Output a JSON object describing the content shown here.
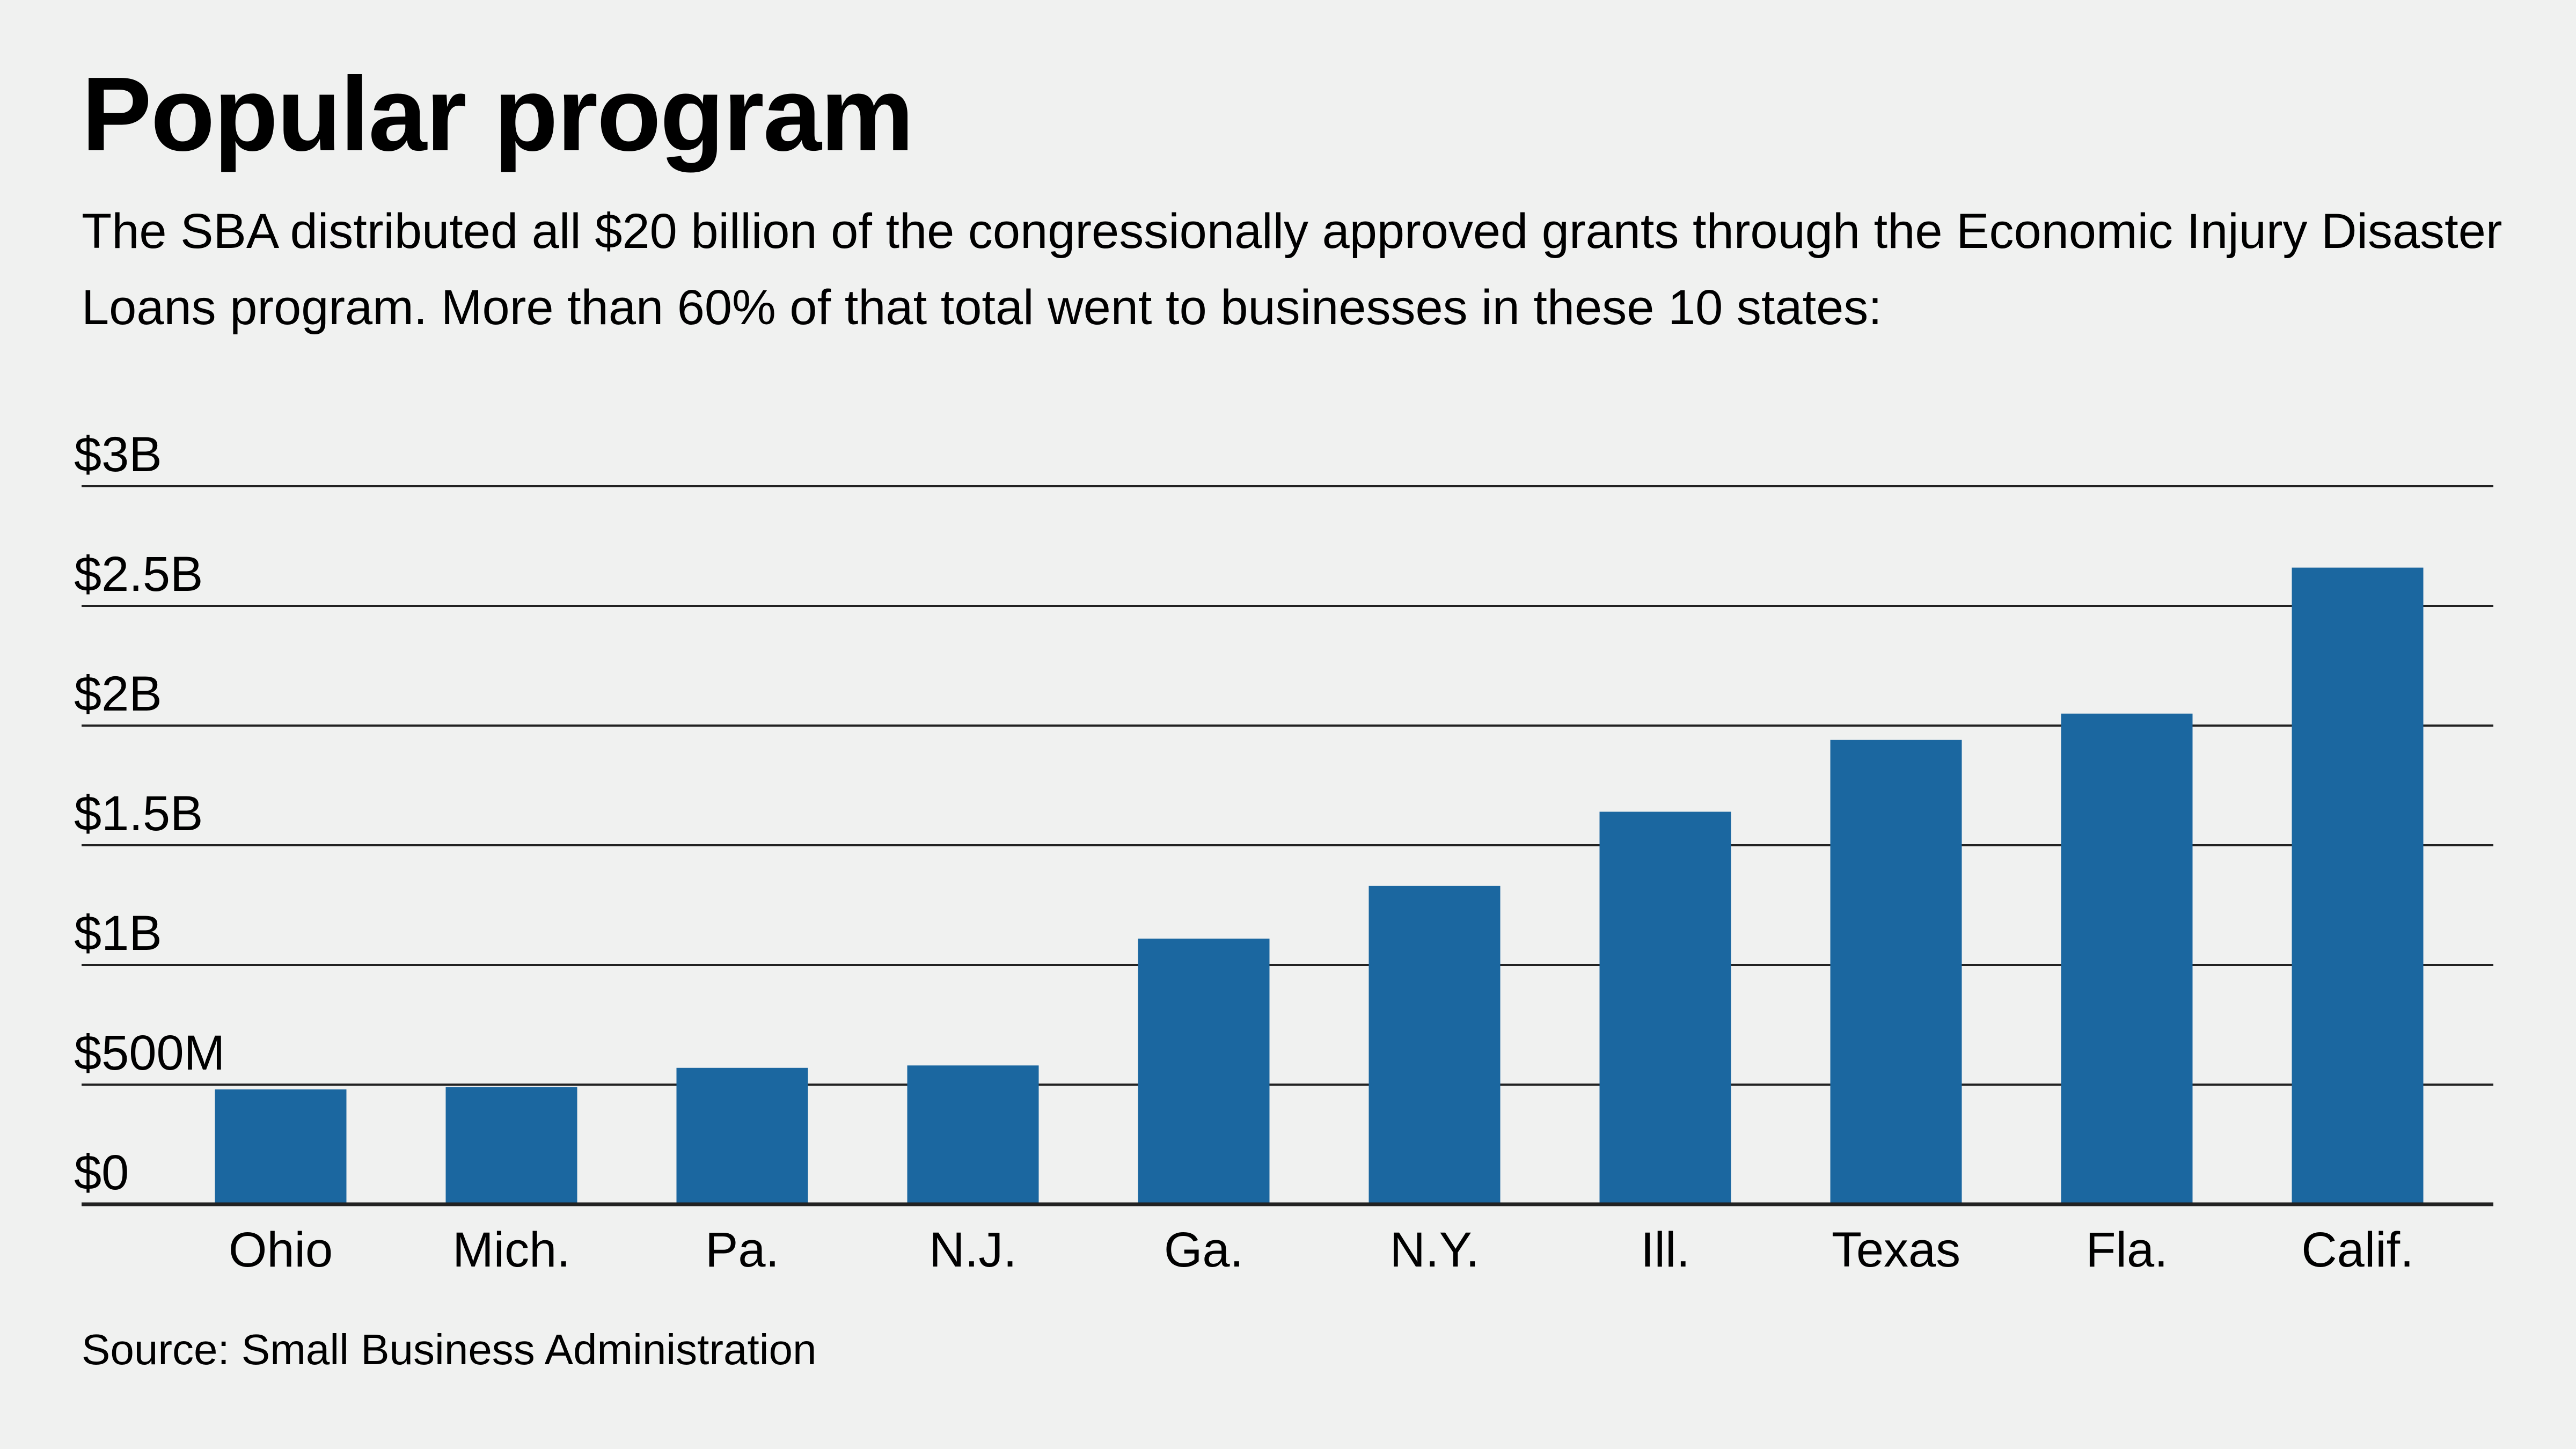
{
  "title": "Popular program",
  "subtitle": "The SBA distributed all $20 billion of the congressionally approved grants through the Economic Injury Disaster Loans program. More than 60% of that total went to businesses in these 10 states:",
  "source": "Source: Small Business Administration",
  "colors": {
    "bar": "#1b67a0",
    "background": "#f0f1f0",
    "gridline": "#222222"
  },
  "chart_data": {
    "type": "bar",
    "title": "Popular program",
    "xlabel": "",
    "ylabel": "",
    "categories": [
      "Ohio",
      "Mich.",
      "Pa.",
      "N.J.",
      "Ga.",
      "N.Y.",
      "Ill.",
      "Texas",
      "Fla.",
      "Calif."
    ],
    "values": [
      0.48,
      0.49,
      0.57,
      0.58,
      1.11,
      1.33,
      1.64,
      1.94,
      2.05,
      2.66
    ],
    "unit": "billions of dollars",
    "ylim": [
      0,
      3
    ],
    "yticks": [
      0,
      0.5,
      1,
      1.5,
      2,
      2.5,
      3
    ],
    "ytick_labels": [
      "$0",
      "$500M",
      "$1B",
      "$1.5B",
      "$2B",
      "$2.5B",
      "$3B"
    ],
    "grid": true,
    "legend": "none"
  }
}
